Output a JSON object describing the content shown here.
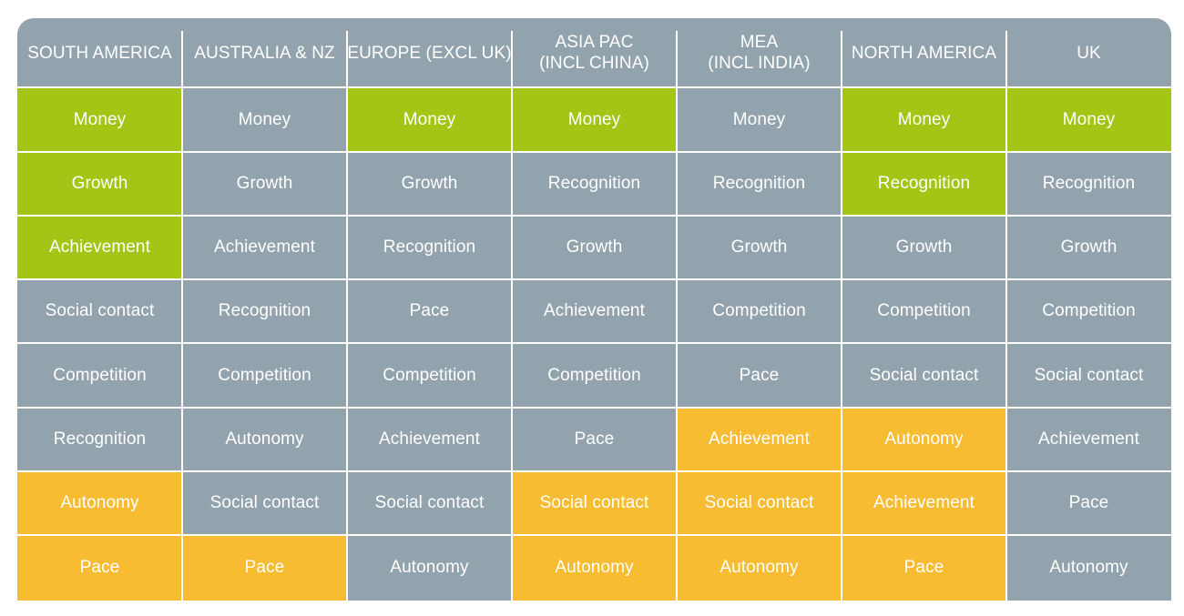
{
  "table": {
    "headers": [
      "SOUTH AMERICA",
      "AUSTRALIA & NZ",
      "EUROPE (EXCL UK)",
      "ASIA PAC\n(INCL CHINA)",
      "MEA\n(INCL INDIA)",
      "NORTH AMERICA",
      "UK"
    ],
    "rows": [
      [
        {
          "text": "Money",
          "status": "green"
        },
        {
          "text": "Money",
          "status": "grey"
        },
        {
          "text": "Money",
          "status": "green"
        },
        {
          "text": "Money",
          "status": "green"
        },
        {
          "text": "Money",
          "status": "grey"
        },
        {
          "text": "Money",
          "status": "green"
        },
        {
          "text": "Money",
          "status": "green"
        }
      ],
      [
        {
          "text": "Growth",
          "status": "green"
        },
        {
          "text": "Growth",
          "status": "grey"
        },
        {
          "text": "Growth",
          "status": "grey"
        },
        {
          "text": "Recognition",
          "status": "grey"
        },
        {
          "text": "Recognition",
          "status": "grey"
        },
        {
          "text": "Recognition",
          "status": "green"
        },
        {
          "text": "Recognition",
          "status": "grey"
        }
      ],
      [
        {
          "text": "Achievement",
          "status": "green"
        },
        {
          "text": "Achievement",
          "status": "grey"
        },
        {
          "text": "Recognition",
          "status": "grey"
        },
        {
          "text": "Growth",
          "status": "grey"
        },
        {
          "text": "Growth",
          "status": "grey"
        },
        {
          "text": "Growth",
          "status": "grey"
        },
        {
          "text": "Growth",
          "status": "grey"
        }
      ],
      [
        {
          "text": "Social contact",
          "status": "grey"
        },
        {
          "text": "Recognition",
          "status": "grey"
        },
        {
          "text": "Pace",
          "status": "grey"
        },
        {
          "text": "Achievement",
          "status": "grey"
        },
        {
          "text": "Competition",
          "status": "grey"
        },
        {
          "text": "Competition",
          "status": "grey"
        },
        {
          "text": "Competition",
          "status": "grey"
        }
      ],
      [
        {
          "text": "Competition",
          "status": "grey"
        },
        {
          "text": "Competition",
          "status": "grey"
        },
        {
          "text": "Competition",
          "status": "grey"
        },
        {
          "text": "Competition",
          "status": "grey"
        },
        {
          "text": "Pace",
          "status": "grey"
        },
        {
          "text": "Social contact",
          "status": "grey"
        },
        {
          "text": "Social contact",
          "status": "grey"
        }
      ],
      [
        {
          "text": "Recognition",
          "status": "grey"
        },
        {
          "text": "Autonomy",
          "status": "grey"
        },
        {
          "text": "Achievement",
          "status": "grey"
        },
        {
          "text": "Pace",
          "status": "grey"
        },
        {
          "text": "Achievement",
          "status": "orange"
        },
        {
          "text": "Autonomy",
          "status": "orange"
        },
        {
          "text": "Achievement",
          "status": "grey"
        }
      ],
      [
        {
          "text": "Autonomy",
          "status": "orange"
        },
        {
          "text": "Social contact",
          "status": "grey"
        },
        {
          "text": "Social contact",
          "status": "grey"
        },
        {
          "text": "Social contact",
          "status": "orange"
        },
        {
          "text": "Social contact",
          "status": "orange"
        },
        {
          "text": "Achievement",
          "status": "orange"
        },
        {
          "text": "Pace",
          "status": "grey"
        }
      ],
      [
        {
          "text": "Pace",
          "status": "orange"
        },
        {
          "text": "Pace",
          "status": "orange"
        },
        {
          "text": "Autonomy",
          "status": "grey"
        },
        {
          "text": "Autonomy",
          "status": "orange"
        },
        {
          "text": "Autonomy",
          "status": "orange"
        },
        {
          "text": "Pace",
          "status": "orange"
        },
        {
          "text": "Autonomy",
          "status": "grey"
        }
      ]
    ]
  },
  "colors": {
    "grey": "#93a3ad",
    "green": "#a2c516",
    "orange": "#f8bc33",
    "text": "#ffffff",
    "gridline": "#ffffff"
  }
}
